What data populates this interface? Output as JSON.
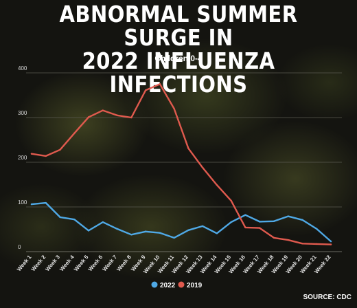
{
  "title_line1": "ABNORMAL SUMMER SURGE IN",
  "title_line2": "2022 INFLUENZA INFECTIONS",
  "source": "SOURCE: CDC",
  "chart_data": {
    "type": "line",
    "subtitle": "Children 0-4",
    "categories": [
      "Week 1",
      "Week 2",
      "Week 3",
      "Week 4",
      "Week 5",
      "Week 6",
      "Week 7",
      "Week 8",
      "Week 9",
      "Week 10",
      "Week 11",
      "Week 12",
      "Week 13",
      "Week 14",
      "Week 15",
      "Week 16",
      "Week 17",
      "Week 18",
      "Week 19",
      "Week 20",
      "Week 21",
      "Week 22"
    ],
    "yticks": [
      0,
      100,
      200,
      300,
      400
    ],
    "ylim": [
      0,
      400
    ],
    "grid": true,
    "legend_position": "bottom-center",
    "series": [
      {
        "name": "2022",
        "color": "#4fa9e6",
        "values": [
          106,
          109,
          77,
          72,
          47,
          66,
          51,
          38,
          45,
          42,
          31,
          48,
          57,
          41,
          66,
          82,
          67,
          68,
          79,
          71,
          51,
          23
        ]
      },
      {
        "name": "2019",
        "color": "#e05a4e",
        "values": [
          219,
          214,
          228,
          265,
          301,
          316,
          305,
          300,
          361,
          375,
          320,
          231,
          188,
          149,
          114,
          54,
          53,
          31,
          26,
          18,
          17,
          16
        ]
      }
    ]
  }
}
